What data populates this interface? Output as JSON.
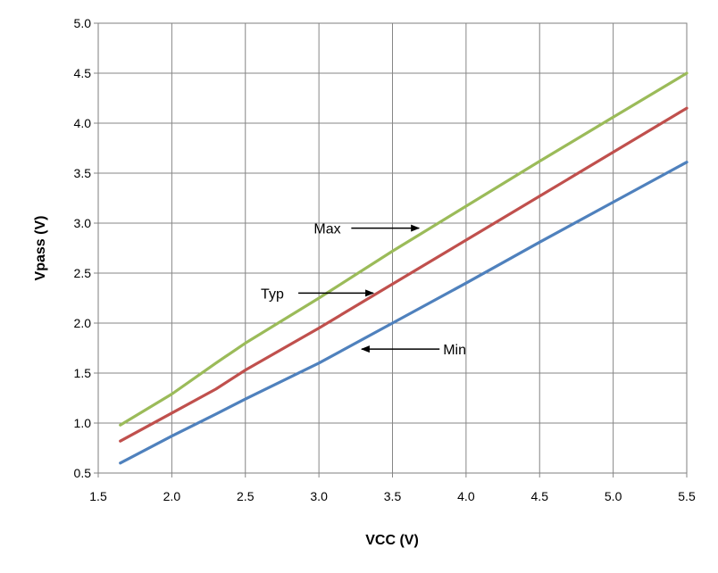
{
  "chart_data": {
    "type": "line",
    "title": "",
    "xlabel": "VCC (V)",
    "ylabel": "Vpass (V)",
    "xlim": [
      1.5,
      5.5
    ],
    "ylim": [
      0.5,
      5.0
    ],
    "x_ticks": [
      "1.5",
      "2.0",
      "2.5",
      "3.0",
      "3.5",
      "4.0",
      "4.5",
      "5.0",
      "5.5"
    ],
    "y_ticks": [
      "0.5",
      "1.0",
      "1.5",
      "2.0",
      "2.5",
      "3.0",
      "3.5",
      "4.0",
      "4.5",
      "5.0"
    ],
    "grid": true,
    "legend": "none",
    "series": [
      {
        "name": "Max",
        "color": "#9bbb59",
        "points": [
          [
            1.65,
            0.98
          ],
          [
            2.0,
            1.29
          ],
          [
            2.3,
            1.6
          ],
          [
            2.5,
            1.8
          ],
          [
            3.0,
            2.25
          ],
          [
            3.5,
            2.72
          ],
          [
            4.0,
            3.17
          ],
          [
            4.5,
            3.62
          ],
          [
            5.0,
            4.06
          ],
          [
            5.5,
            4.5
          ]
        ]
      },
      {
        "name": "Typ",
        "color": "#c0504d",
        "points": [
          [
            1.65,
            0.82
          ],
          [
            2.0,
            1.1
          ],
          [
            2.3,
            1.34
          ],
          [
            2.5,
            1.53
          ],
          [
            3.0,
            1.95
          ],
          [
            3.5,
            2.39
          ],
          [
            4.0,
            2.83
          ],
          [
            4.5,
            3.27
          ],
          [
            5.0,
            3.71
          ],
          [
            5.5,
            4.15
          ]
        ]
      },
      {
        "name": "Min",
        "color": "#4f81bd",
        "points": [
          [
            1.65,
            0.6
          ],
          [
            2.0,
            0.87
          ],
          [
            2.3,
            1.09
          ],
          [
            2.5,
            1.24
          ],
          [
            3.0,
            1.6
          ],
          [
            3.5,
            2.0
          ],
          [
            4.0,
            2.4
          ],
          [
            4.5,
            2.81
          ],
          [
            5.0,
            3.21
          ],
          [
            5.5,
            3.61
          ]
        ]
      }
    ],
    "annotations": [
      {
        "text": "Max",
        "arrow_from": [
          3.22,
          2.95
        ],
        "arrow_to": [
          3.68,
          2.95
        ]
      },
      {
        "text": "Typ",
        "arrow_from": [
          2.86,
          2.3
        ],
        "arrow_to": [
          3.37,
          2.3
        ]
      },
      {
        "text": "Min",
        "arrow_from": [
          3.82,
          1.74
        ],
        "arrow_to": [
          3.29,
          1.74
        ]
      }
    ]
  }
}
